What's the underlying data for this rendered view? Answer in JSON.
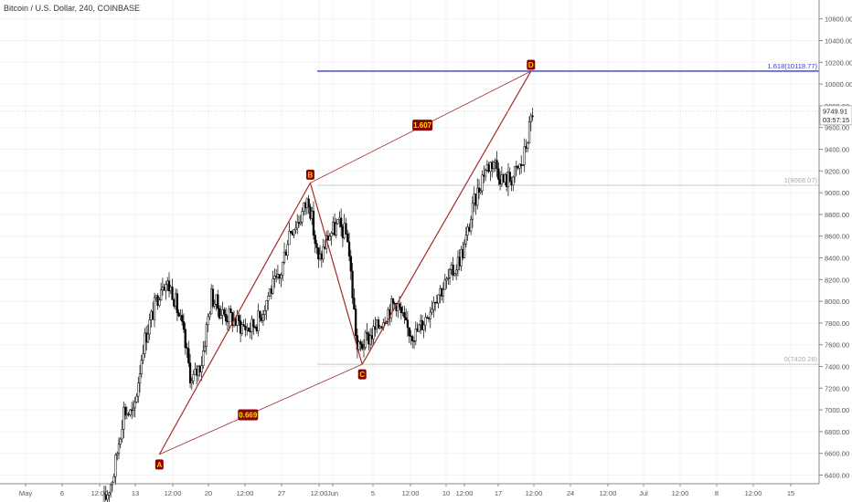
{
  "symbol_title": "Bitcoin / U.S. Dollar, 240, COINBASE",
  "colors": {
    "up": "#ffffff",
    "down": "#000000",
    "wick": "#000000",
    "pattern": "#a52a2a",
    "pattern_label_bg": "#8b0000",
    "fib_top": "#3a3ad0",
    "fib_mid": "#c8c8c8",
    "grid": "#f3f3f3",
    "axis_line": "#888888"
  },
  "price_axis": {
    "labels": [
      "10600.00",
      "10400.00",
      "10200.00",
      "10000.00",
      "9800.00",
      "9600.00",
      "9400.00",
      "9200.00",
      "9000.00",
      "8800.00",
      "8600.00",
      "8400.00",
      "8200.00",
      "8000.00",
      "7800.00",
      "7600.00",
      "7400.00",
      "7200.00",
      "7000.00",
      "6800.00",
      "6600.00",
      "6400.00"
    ],
    "current_price": "9749.91",
    "countdown": "03:57:15"
  },
  "time_axis": {
    "labels": [
      "May",
      "6",
      "12:00",
      "13",
      "12:00",
      "20",
      "12:00",
      "27",
      "12:00",
      "Jun",
      "5",
      "12:00",
      "10",
      "12:00",
      "17",
      "12:00",
      "24",
      "12:00",
      "Jul",
      "12:00",
      "8",
      "12:00",
      "15"
    ]
  },
  "fib_levels": [
    {
      "label": "1.618(10118.77)",
      "price": 10118.77
    },
    {
      "label": "1(9068.07)",
      "price": 9068.07
    },
    {
      "label": "0(7420.28)",
      "price": 7420.28
    }
  ],
  "pattern": {
    "points": [
      {
        "label": "A",
        "x": "2019-05-14 16:00",
        "y": 6590
      },
      {
        "label": "B",
        "x": "2019-05-30 04:00",
        "y": 9090
      },
      {
        "label": "C",
        "x": "2019-06-04 12:00",
        "y": 7420
      },
      {
        "label": "D",
        "x": "2019-06-21 20:00",
        "y": 10118.77
      }
    ],
    "ratios": [
      {
        "label": "1.607",
        "from": "B",
        "to": "D"
      },
      {
        "label": "0.669",
        "from": "A",
        "to": "C"
      }
    ]
  },
  "chart_data": {
    "type": "candlestick",
    "title": "Bitcoin / U.S. Dollar, 240, COINBASE",
    "interval": "240",
    "ylim": [
      6300,
      10750
    ],
    "x_range": [
      "2019-05-01",
      "2019-07-17"
    ],
    "close_path": [
      [
        "2019-05-09",
        6150
      ],
      [
        "2019-05-10",
        6420
      ],
      [
        "2019-05-11",
        7000
      ],
      [
        "2019-05-12",
        6950
      ],
      [
        "2019-05-13",
        7600
      ],
      [
        "2019-05-14",
        7900
      ],
      [
        "2019-05-15",
        8200
      ],
      [
        "2019-05-16",
        8100
      ],
      [
        "2019-05-17",
        7750
      ],
      [
        "2019-05-18",
        7250
      ],
      [
        "2019-05-19",
        7450
      ],
      [
        "2019-05-20",
        8050
      ],
      [
        "2019-05-21",
        7900
      ],
      [
        "2019-05-22",
        7850
      ],
      [
        "2019-05-23",
        7780
      ],
      [
        "2019-05-24",
        7750
      ],
      [
        "2019-05-25",
        7850
      ],
      [
        "2019-05-26",
        8100
      ],
      [
        "2019-05-27",
        8200
      ],
      [
        "2019-05-28",
        8650
      ],
      [
        "2019-05-29",
        8750
      ],
      [
        "2019-05-30",
        8950
      ],
      [
        "2019-05-31",
        8350
      ],
      [
        "2019-06-01",
        8600
      ],
      [
        "2019-06-02",
        8700
      ],
      [
        "2019-06-03",
        8600
      ],
      [
        "2019-06-04",
        7550
      ],
      [
        "2019-06-05",
        7650
      ],
      [
        "2019-06-06",
        7750
      ],
      [
        "2019-06-07",
        7900
      ],
      [
        "2019-06-08",
        8000
      ],
      [
        "2019-06-09",
        7750
      ],
      [
        "2019-06-10",
        7700
      ],
      [
        "2019-06-11",
        7850
      ],
      [
        "2019-06-12",
        8050
      ],
      [
        "2019-06-13",
        8150
      ],
      [
        "2019-06-14",
        8300
      ],
      [
        "2019-06-15",
        8500
      ],
      [
        "2019-06-16",
        8900
      ],
      [
        "2019-06-17",
        9200
      ],
      [
        "2019-06-18",
        9300
      ],
      [
        "2019-06-19",
        9100
      ],
      [
        "2019-06-20",
        9150
      ],
      [
        "2019-06-21",
        9280
      ],
      [
        "2019-06-22",
        9750
      ]
    ]
  }
}
